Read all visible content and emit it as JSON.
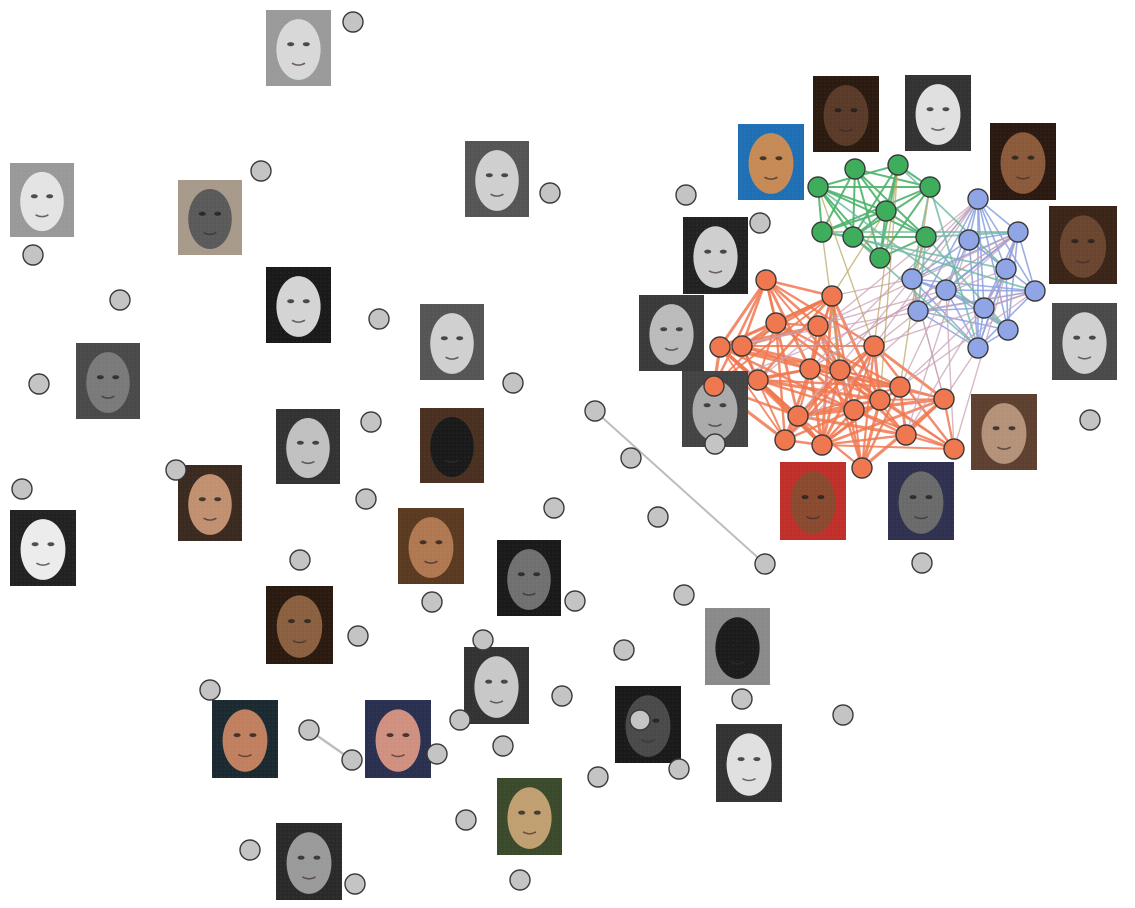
{
  "colors": {
    "background": "#ffffff",
    "node_gray": "#c4c4c4",
    "node_stroke": "#3a3a3a",
    "cluster_orange": "#f07850",
    "cluster_green": "#3fae5c",
    "cluster_blue": "#8fa5e6",
    "edge_orange": "#f07850",
    "edge_green": "#4db36a",
    "edge_blue": "#8aa0e0",
    "edge_mixed": "#c9a0b6",
    "edge_gray": "#bdbdbd"
  },
  "clusters": [
    {
      "id": "orange",
      "node_count": 21
    },
    {
      "id": "green",
      "node_count": 9
    },
    {
      "id": "blue",
      "node_count": 11
    }
  ],
  "isolated_node_count": 45,
  "gray_edge_count": 2,
  "face_thumbnail_count": 40
}
